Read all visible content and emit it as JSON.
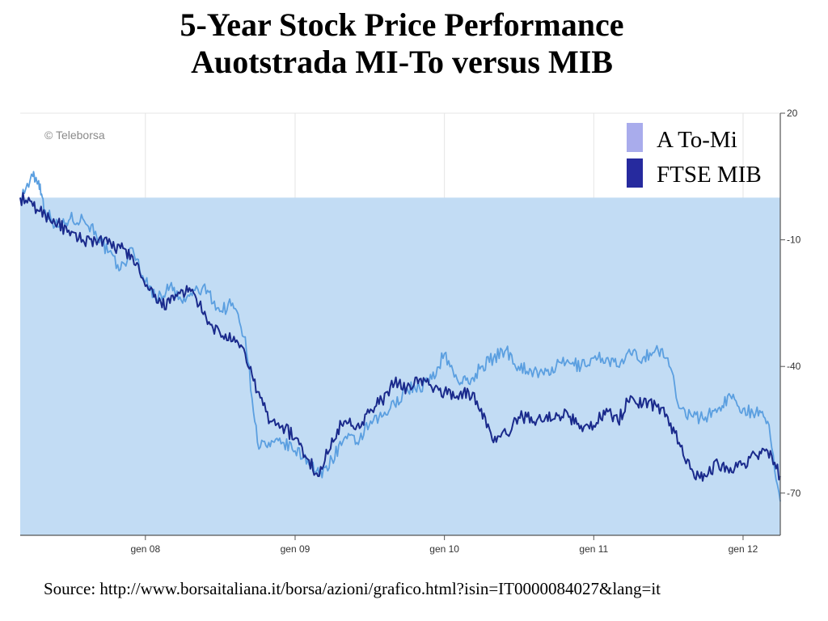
{
  "title": {
    "line1": "5-Year Stock Price Performance",
    "line2": "Auotstrada MI-To versus MIB"
  },
  "credit": "© Teleborsa",
  "source": "Source: http://www.borsaitaliana.it/borsa/azioni/grafico.html?isin=IT0000084027&lang=it",
  "colors": {
    "a_to_mi": "#5b9fe0",
    "a_to_mi_legend": "#a9acec",
    "ftse_mib": "#1a2a8c",
    "ftse_mib_legend": "#262a9e",
    "fill": "#c2dcf4",
    "grid": "#e4e4e4",
    "axis": "#555555"
  },
  "chart_data": {
    "type": "line",
    "x_start": "2007-03",
    "x_end": "2012-04",
    "xticks": [
      {
        "date": "2008-01",
        "label": "gen 08"
      },
      {
        "date": "2009-01",
        "label": "gen 09"
      },
      {
        "date": "2010-01",
        "label": "gen 10"
      },
      {
        "date": "2011-01",
        "label": "gen 11"
      },
      {
        "date": "2012-01",
        "label": "gen 12"
      }
    ],
    "yticks": [
      20,
      -10,
      -40,
      -70
    ],
    "ylim": [
      -80,
      20
    ],
    "y_axis_side": "right",
    "grid": true,
    "legend_position": "top-right",
    "baseline": 0,
    "baseline_fill": true,
    "series": [
      {
        "name": "A To-Mi",
        "color_key": "a_to_mi",
        "x": [
          "2007-03-01",
          "2007-04-01",
          "2007-04-15",
          "2007-05-01",
          "2007-06-01",
          "2007-07-01",
          "2007-08-01",
          "2007-09-01",
          "2007-10-01",
          "2007-11-01",
          "2007-12-01",
          "2008-01-01",
          "2008-02-01",
          "2008-03-01",
          "2008-04-01",
          "2008-05-01",
          "2008-06-01",
          "2008-07-01",
          "2008-08-01",
          "2008-09-01",
          "2008-10-01",
          "2008-11-01",
          "2008-12-01",
          "2009-01-01",
          "2009-02-01",
          "2009-03-01",
          "2009-04-01",
          "2009-05-01",
          "2009-06-01",
          "2009-07-01",
          "2009-08-01",
          "2009-09-01",
          "2009-10-01",
          "2009-11-01",
          "2009-12-01",
          "2010-01-01",
          "2010-02-01",
          "2010-03-01",
          "2010-04-01",
          "2010-05-01",
          "2010-06-01",
          "2010-07-01",
          "2010-08-01",
          "2010-09-01",
          "2010-10-01",
          "2010-11-01",
          "2010-12-01",
          "2011-01-01",
          "2011-02-01",
          "2011-03-01",
          "2011-04-01",
          "2011-05-01",
          "2011-06-01",
          "2011-07-01",
          "2011-08-01",
          "2011-09-01",
          "2011-10-01",
          "2011-11-01",
          "2011-12-01",
          "2012-01-01",
          "2012-02-01",
          "2012-03-01",
          "2012-04-01"
        ],
        "values": [
          0,
          5,
          4,
          -3,
          -7,
          -5,
          -5,
          -8,
          -13,
          -17,
          -12,
          -20,
          -24,
          -21,
          -25,
          -22,
          -22,
          -27,
          -25,
          -33,
          -58,
          -59,
          -58,
          -60,
          -62,
          -66,
          -62,
          -57,
          -58,
          -54,
          -52,
          -49,
          -45,
          -45,
          -43,
          -37,
          -43,
          -44,
          -40,
          -38,
          -36,
          -40,
          -41,
          -42,
          -40,
          -39,
          -40,
          -38,
          -38,
          -40,
          -37,
          -38,
          -36,
          -38,
          -50,
          -52,
          -52,
          -50,
          -47,
          -50,
          -51,
          -53,
          -72
        ]
      },
      {
        "name": "FTSE MIB",
        "color_key": "ftse_mib",
        "x": [
          "2007-03-01",
          "2007-04-01",
          "2007-05-01",
          "2007-06-01",
          "2007-07-01",
          "2007-08-01",
          "2007-09-01",
          "2007-10-01",
          "2007-11-01",
          "2007-12-01",
          "2008-01-01",
          "2008-02-01",
          "2008-03-01",
          "2008-04-01",
          "2008-05-01",
          "2008-06-01",
          "2008-07-01",
          "2008-08-01",
          "2008-09-01",
          "2008-10-01",
          "2008-11-01",
          "2008-12-01",
          "2009-01-01",
          "2009-02-01",
          "2009-03-01",
          "2009-04-01",
          "2009-05-01",
          "2009-06-01",
          "2009-07-01",
          "2009-08-01",
          "2009-09-01",
          "2009-10-01",
          "2009-11-01",
          "2009-12-01",
          "2010-01-01",
          "2010-02-01",
          "2010-03-01",
          "2010-04-01",
          "2010-05-01",
          "2010-06-01",
          "2010-07-01",
          "2010-08-01",
          "2010-09-01",
          "2010-10-01",
          "2010-11-01",
          "2010-12-01",
          "2011-01-01",
          "2011-02-01",
          "2011-03-01",
          "2011-04-01",
          "2011-05-01",
          "2011-06-01",
          "2011-07-01",
          "2011-08-01",
          "2011-09-01",
          "2011-10-01",
          "2011-11-01",
          "2011-12-01",
          "2012-01-01",
          "2012-02-01",
          "2012-03-01",
          "2012-04-01"
        ],
        "values": [
          0,
          -2,
          -4,
          -6,
          -9,
          -10,
          -10,
          -11,
          -12,
          -14,
          -21,
          -25,
          -25,
          -22,
          -23,
          -30,
          -32,
          -34,
          -37,
          -46,
          -53,
          -54,
          -57,
          -62,
          -66,
          -57,
          -53,
          -54,
          -51,
          -48,
          -44,
          -45,
          -43,
          -45,
          -46,
          -47,
          -46,
          -50,
          -58,
          -56,
          -52,
          -52,
          -53,
          -51,
          -52,
          -54,
          -54,
          -50,
          -53,
          -47,
          -49,
          -49,
          -52,
          -59,
          -65,
          -66,
          -63,
          -64,
          -63,
          -61,
          -60,
          -66
        ]
      }
    ]
  }
}
